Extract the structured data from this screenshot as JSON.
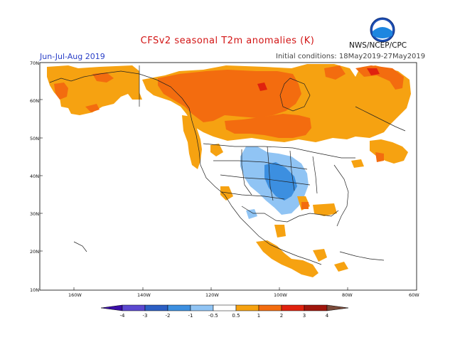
{
  "title": "CFSv2 seasonal T2m anomalies (K)",
  "season": "Jun-Jul-Aug 2019",
  "initial_conditions": "Initial conditions: 18May2019-27May2019",
  "agency": "NWS/NCEP/CPC",
  "logo_text": "NOAA",
  "lat_labels": [
    "70N",
    "60N",
    "50N",
    "40N",
    "30N",
    "20N",
    "10N"
  ],
  "lon_labels": [
    "160W",
    "140W",
    "120W",
    "100W",
    "80W",
    "60W"
  ],
  "colorbar": {
    "labels": [
      "-4",
      "-3",
      "-2",
      "-1",
      "-0.5",
      "0.5",
      "1",
      "2",
      "3",
      "4"
    ],
    "colors": {
      "below_-4": "#3a0ea8",
      "-4_-3": "#5b48d0",
      "-3_-2": "#2c5fc4",
      "-2_-1": "#3c8fe0",
      "-1_-0.5": "#90c4f4",
      "-0.5_0.5": "#ffffff",
      "0.5_1": "#f6a211",
      "1_2": "#f36c0f",
      "2_3": "#e0220e",
      "3_4": "#a0160c",
      "above_4": "#7a4a3a"
    }
  },
  "map": {
    "lat_range": [
      10,
      70
    ],
    "lon_range": [
      -170,
      -60
    ],
    "anomaly_regions": [
      {
        "name": "alaska",
        "class": "0.5_1"
      },
      {
        "name": "northern-canada",
        "class": "1_2"
      },
      {
        "name": "central-canada",
        "class": "1_2"
      },
      {
        "name": "canada-band",
        "class": "0.5_1"
      },
      {
        "name": "greenland-coast",
        "class": "1_2"
      },
      {
        "name": "central-us",
        "class": "-1_-0.5"
      },
      {
        "name": "central-us-core",
        "class": "-2_-1"
      },
      {
        "name": "pacific-coast",
        "class": "0.5_1"
      },
      {
        "name": "mexico",
        "class": "0.5_1"
      },
      {
        "name": "new-england",
        "class": "1_2"
      },
      {
        "name": "southeast-us",
        "class": "0.5_1"
      }
    ]
  }
}
